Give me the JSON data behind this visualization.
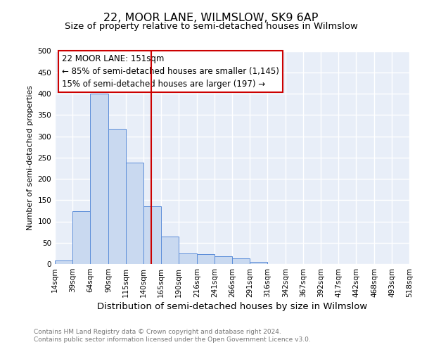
{
  "title1": "22, MOOR LANE, WILMSLOW, SK9 6AP",
  "title2": "Size of property relative to semi-detached houses in Wilmslow",
  "bar_edges": [
    14,
    39,
    64,
    90,
    115,
    140,
    165,
    190,
    216,
    241,
    266,
    291,
    316,
    342,
    367,
    392,
    417,
    442,
    468,
    493,
    518
  ],
  "bar_heights": [
    8,
    124,
    400,
    318,
    238,
    136,
    65,
    25,
    23,
    18,
    14,
    5,
    0,
    0,
    0,
    0,
    0,
    0,
    0,
    0
  ],
  "bar_color": "#c9d9f0",
  "bar_edge_color": "#5b8dd9",
  "property_size": 151,
  "vline_color": "#cc0000",
  "annotation_title": "22 MOOR LANE: 151sqm",
  "annotation_line1": "← 85% of semi-detached houses are smaller (1,145)",
  "annotation_line2": "15% of semi-detached houses are larger (197) →",
  "annotation_box_color": "#ffffff",
  "annotation_box_edge": "#cc0000",
  "xlabel": "Distribution of semi-detached houses by size in Wilmslow",
  "ylabel": "Number of semi-detached properties",
  "ylim": [
    0,
    500
  ],
  "yticks": [
    0,
    50,
    100,
    150,
    200,
    250,
    300,
    350,
    400,
    450,
    500
  ],
  "xtick_labels": [
    "14sqm",
    "39sqm",
    "64sqm",
    "90sqm",
    "115sqm",
    "140sqm",
    "165sqm",
    "190sqm",
    "216sqm",
    "241sqm",
    "266sqm",
    "291sqm",
    "316sqm",
    "342sqm",
    "367sqm",
    "392sqm",
    "417sqm",
    "442sqm",
    "468sqm",
    "493sqm",
    "518sqm"
  ],
  "footer1": "Contains HM Land Registry data © Crown copyright and database right 2024.",
  "footer2": "Contains public sector information licensed under the Open Government Licence v3.0.",
  "fig_bg_color": "#ffffff",
  "plot_bg_color": "#e8eef8",
  "grid_color": "#ffffff",
  "title1_fontsize": 11.5,
  "title2_fontsize": 9.5,
  "xlabel_fontsize": 9.5,
  "ylabel_fontsize": 8,
  "tick_fontsize": 7.5,
  "annotation_fontsize": 8.5,
  "footer_fontsize": 6.5
}
